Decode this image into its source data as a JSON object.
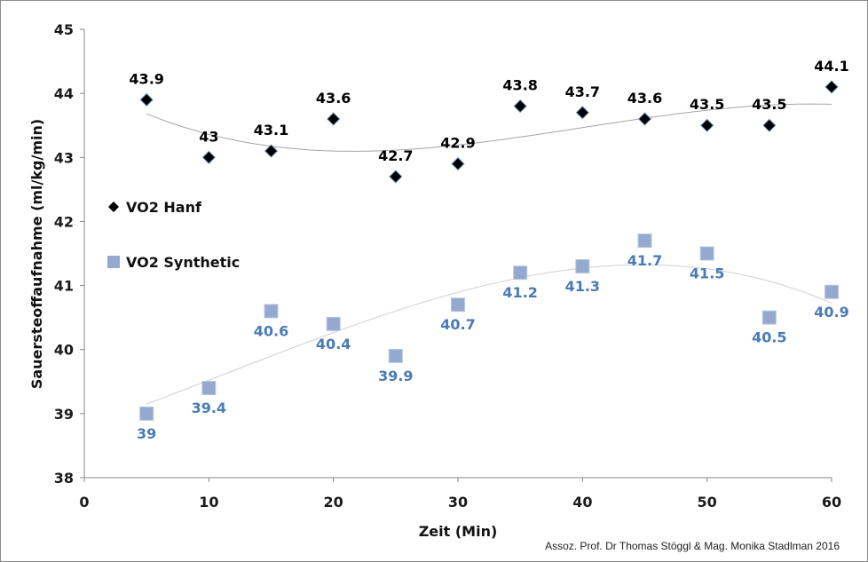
{
  "chart_data": {
    "type": "scatter",
    "xlabel": "Zeit (Min)",
    "ylabel": "Sauersteoffaufnahme (ml/kg/min)",
    "xlim": [
      0,
      60
    ],
    "ylim": [
      38,
      45
    ],
    "xticks": [
      0,
      10,
      20,
      30,
      40,
      50,
      60
    ],
    "yticks": [
      38,
      39,
      40,
      41,
      42,
      43,
      44,
      45
    ],
    "grid": false,
    "legend_position": "left",
    "trendline": "polynomial",
    "series": [
      {
        "name": "VO2 Hanf",
        "marker": "diamond",
        "color": "#000000",
        "label_color": "#000000",
        "x": [
          5,
          10,
          15,
          20,
          25,
          30,
          35,
          40,
          45,
          50,
          55,
          60
        ],
        "y": [
          43.9,
          43,
          43.1,
          43.6,
          42.7,
          42.9,
          43.8,
          43.7,
          43.6,
          43.5,
          43.5,
          44.1
        ],
        "labels": [
          "43.9",
          "43",
          "43.1",
          "43.6",
          "42.7",
          "42.9",
          "43.8",
          "43.7",
          "43.6",
          "43.5",
          "43.5",
          "44.1"
        ]
      },
      {
        "name": "VO2 Synthetic",
        "marker": "square",
        "color": "#95a9d0",
        "label_color": "#4a7bb5",
        "x": [
          5,
          10,
          15,
          20,
          25,
          30,
          35,
          40,
          45,
          50,
          55,
          60
        ],
        "y": [
          39,
          39.4,
          40.6,
          40.4,
          39.9,
          40.7,
          41.2,
          41.3,
          41.7,
          41.5,
          40.5,
          40.9
        ],
        "labels": [
          "39",
          "39.4",
          "40.6",
          "40.4",
          "39.9",
          "40.7",
          "41.2",
          "41.3",
          "41.7",
          "41.5",
          "40.5",
          "40.9"
        ]
      }
    ]
  },
  "footer": {
    "credit": "Assoz. Prof. Dr Thomas Stöggl & Mag. Monika Stadlman 2016"
  }
}
